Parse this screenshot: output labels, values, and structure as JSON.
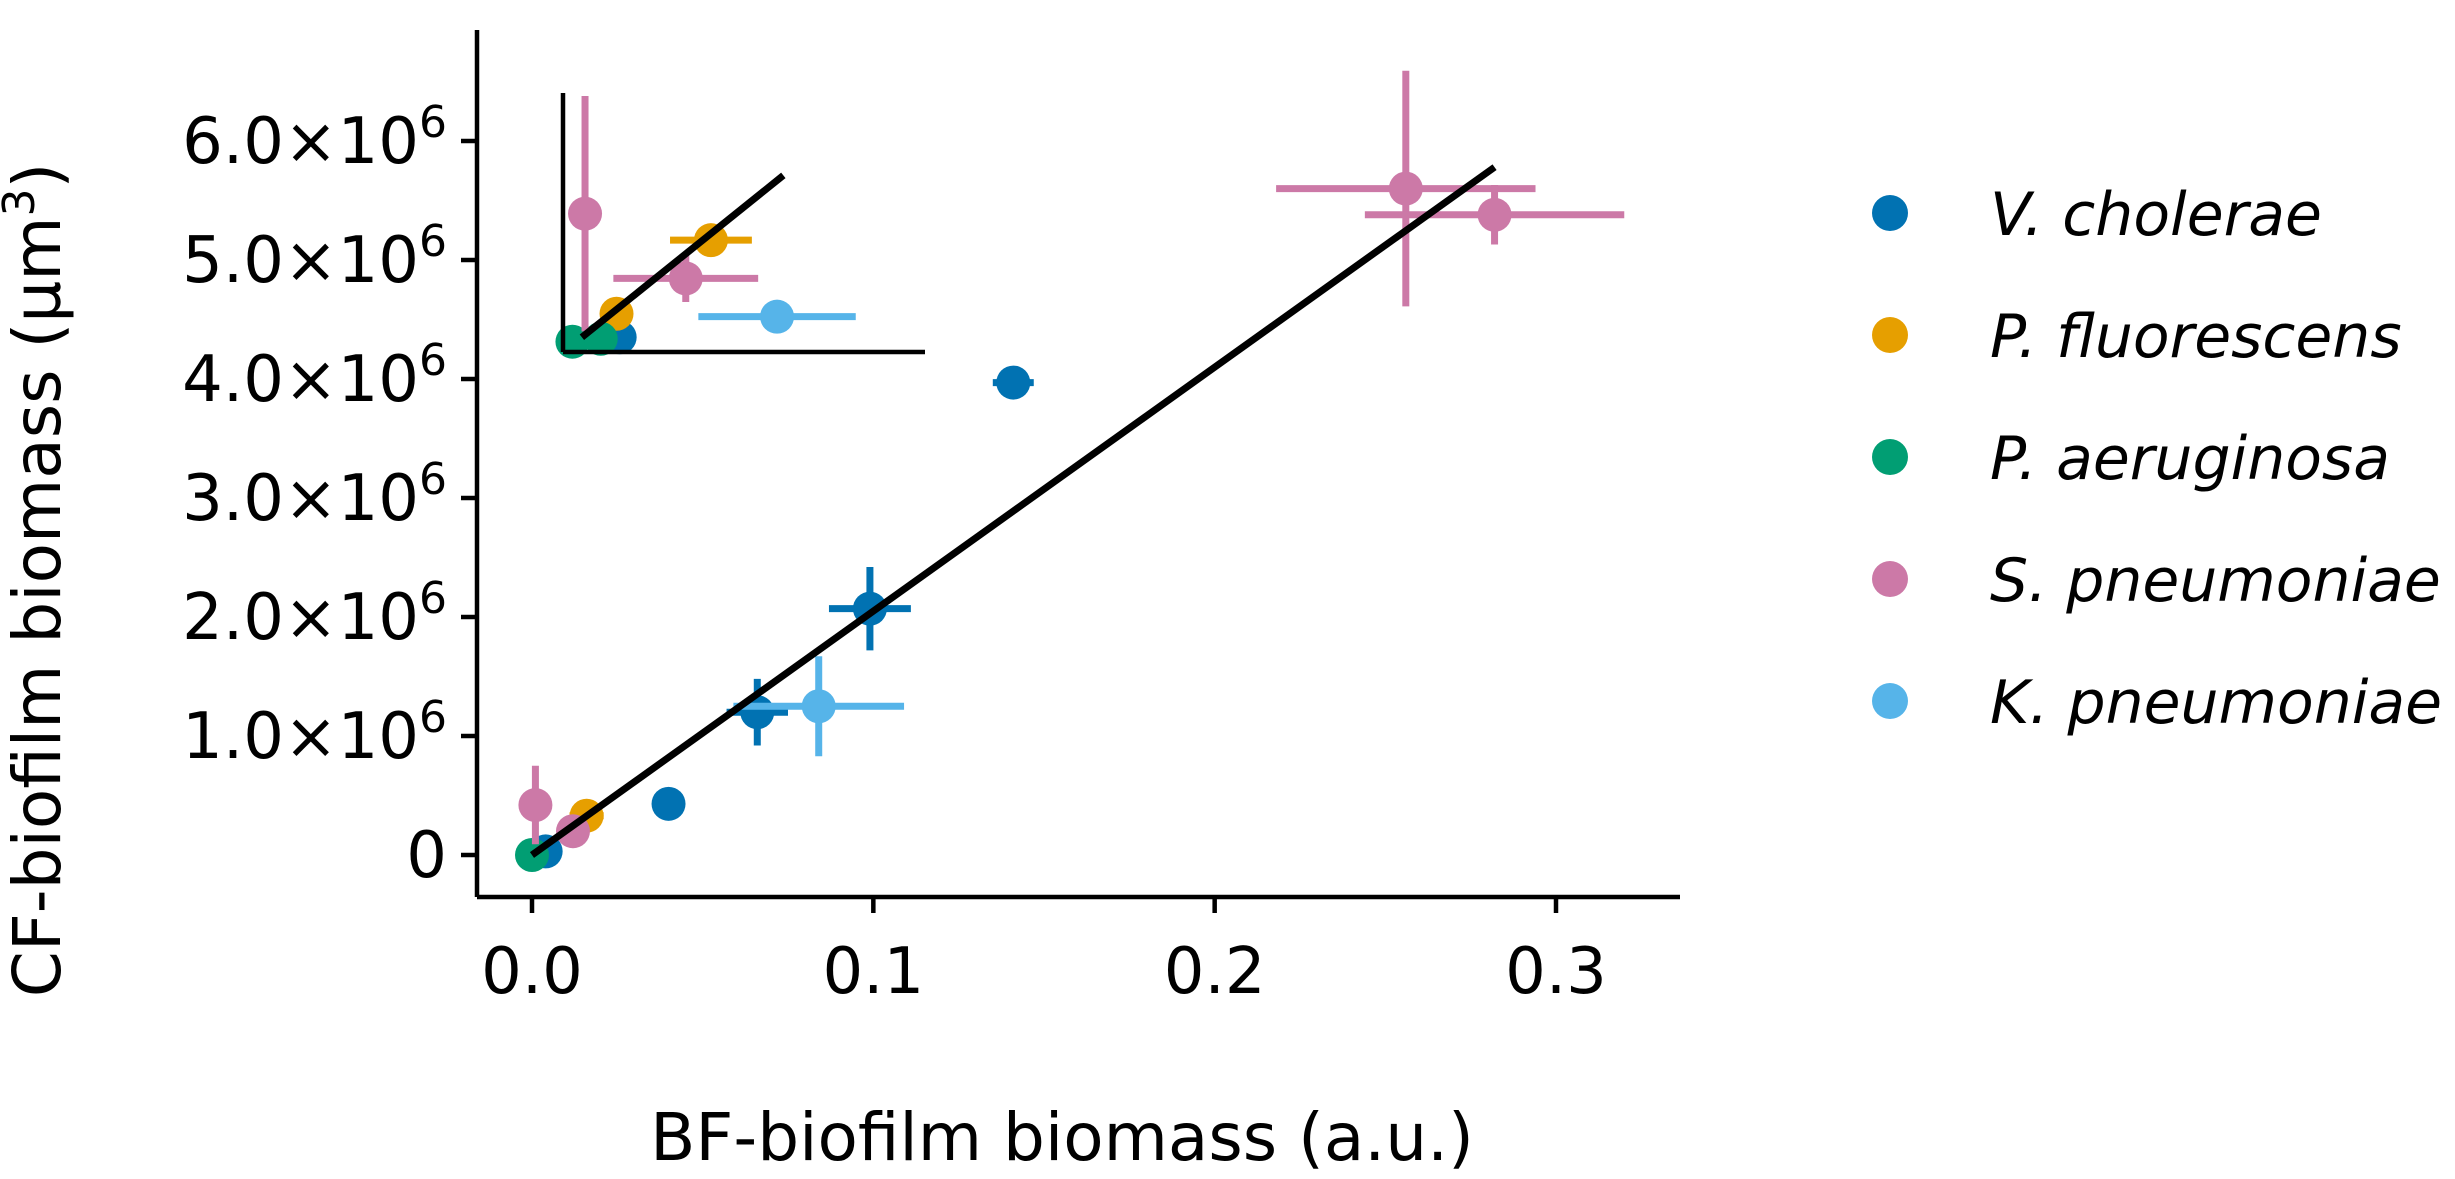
{
  "colors": {
    "V. cholerae": "#0172b2",
    "P. fluorescens": "#e69f00",
    "P. aeruginosa": "#019e73",
    "S. pneumoniae": "#cc79a7",
    "K. pneumoniae": "#56b4e9"
  },
  "chart_data": {
    "type": "scatter",
    "title": "",
    "xlabel": "BF-biofilm biomass (a.u.)",
    "ylabel_text": "CF-biofilm biomass (µm",
    "ylabel_sup": "3",
    "ylabel_close": ")",
    "xlim": [
      -0.017,
      0.34
    ],
    "ylim": [
      -350000,
      6900000
    ],
    "xticks": [
      0.0,
      0.1,
      0.2,
      0.3
    ],
    "xtick_labels": [
      "0.0",
      "0.1",
      "0.2",
      "0.3"
    ],
    "yticks": [
      0,
      1000000,
      2000000,
      3000000,
      4000000,
      5000000,
      6000000
    ],
    "ytick_labels": [
      {
        "mantissa": "0",
        "exp": ""
      },
      {
        "mantissa": "1.0×10",
        "exp": "6"
      },
      {
        "mantissa": "2.0×10",
        "exp": "6"
      },
      {
        "mantissa": "3.0×10",
        "exp": "6"
      },
      {
        "mantissa": "4.0×10",
        "exp": "6"
      },
      {
        "mantissa": "5.0×10",
        "exp": "6"
      },
      {
        "mantissa": "6.0×10",
        "exp": "6"
      }
    ],
    "legend_position": "right",
    "fit_line": {
      "x": [
        0.0,
        0.282
      ],
      "y": [
        0,
        5780000
      ]
    },
    "series": [
      {
        "name": "V. cholerae",
        "points": [
          {
            "x": 0.004,
            "y": 30000,
            "xerr": 0.0,
            "yerr": 0
          },
          {
            "x": 0.04,
            "y": 430000,
            "xerr": 0.004,
            "yerr": 40000
          },
          {
            "x": 0.066,
            "y": 1200000,
            "xerr": 0.009,
            "yerr": 280000
          },
          {
            "x": 0.099,
            "y": 2070000,
            "xerr": 0.012,
            "yerr": 350000
          },
          {
            "x": 0.141,
            "y": 3970000,
            "xerr": 0.006,
            "yerr": 130000
          }
        ]
      },
      {
        "name": "P. fluorescens",
        "points": [
          {
            "x": 0.016,
            "y": 330000,
            "xerr": 0.005,
            "yerr": 110000
          }
        ]
      },
      {
        "name": "P. aeruginosa",
        "points": [
          {
            "x": 0.0,
            "y": 0,
            "xerr": 0.0,
            "yerr": 0
          }
        ]
      },
      {
        "name": "S. pneumoniae",
        "points": [
          {
            "x": 0.001,
            "y": 420000,
            "xerr": 0.0,
            "yerr": 330000
          },
          {
            "x": 0.012,
            "y": 200000,
            "xerr": 0.004,
            "yerr": 100000
          },
          {
            "x": 0.256,
            "y": 5600000,
            "xerr": 0.038,
            "yerr": 990000
          },
          {
            "x": 0.282,
            "y": 5380000,
            "xerr": 0.038,
            "yerr": 250000
          }
        ]
      },
      {
        "name": "K. pneumoniae",
        "points": [
          {
            "x": 0.084,
            "y": 1250000,
            "xerr": 0.025,
            "yerr": 420000
          }
        ]
      }
    ],
    "inset": {
      "xlim": [
        0,
        0.115
      ],
      "ylim": [
        0,
        880000
      ],
      "fit_line": {
        "x": [
          0.006,
          0.07
        ],
        "y": [
          50000,
          600000
        ]
      },
      "series": [
        {
          "name": "V. cholerae",
          "points": [
            {
              "x": 0.018,
              "y": 50000,
              "xerr": 0.0,
              "yerr": 0
            }
          ]
        },
        {
          "name": "P. fluorescens",
          "points": [
            {
              "x": 0.017,
              "y": 130000,
              "xerr": 0.0,
              "yerr": 0
            },
            {
              "x": 0.047,
              "y": 380000,
              "xerr": 0.013,
              "yerr": 0
            }
          ]
        },
        {
          "name": "P. aeruginosa",
          "points": [
            {
              "x": 0.003,
              "y": 35000,
              "xerr": 0.0,
              "yerr": 0
            },
            {
              "x": 0.012,
              "y": 45000,
              "xerr": 0.0,
              "yerr": 0
            }
          ]
        },
        {
          "name": "S. pneumoniae",
          "points": [
            {
              "x": 0.007,
              "y": 470000,
              "xerr": 0.0,
              "yerr": 400000
            },
            {
              "x": 0.039,
              "y": 250000,
              "xerr": 0.023,
              "yerr": 80000
            }
          ]
        },
        {
          "name": "K. pneumoniae",
          "points": [
            {
              "x": 0.068,
              "y": 120000,
              "xerr": 0.025,
              "yerr": 0
            }
          ]
        }
      ]
    }
  }
}
